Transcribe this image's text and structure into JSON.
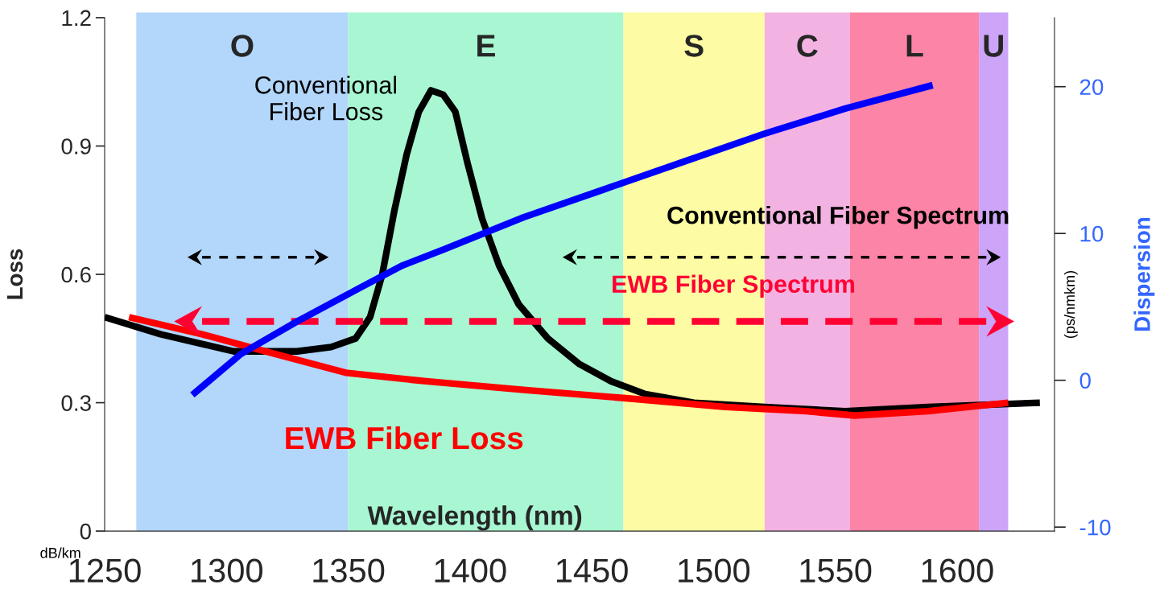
{
  "chart_data": {
    "type": "line",
    "xlabel": "Wavelength (nm)",
    "ylabel": "Loss",
    "y2label": "Dispersion",
    "xlim": [
      1250,
      1640
    ],
    "xticks": [
      1250,
      1300,
      1350,
      1400,
      1450,
      1500,
      1550,
      1600
    ],
    "ylim": [
      0,
      1.2
    ],
    "yticks": [
      {
        "value": 0,
        "label": "0"
      },
      0.3,
      0.6,
      0.9,
      1.2
    ],
    "y2lim": [
      -10.27,
      24.7
    ],
    "y2ticks": [
      -10,
      0,
      10,
      20
    ],
    "grid": false,
    "series": [
      {
        "color": "#000000",
        "marker": "none",
        "line_style": "solid",
        "x": [
          1250,
          1273,
          1303,
          1329,
          1343,
          1353,
          1359,
          1364,
          1369,
          1374,
          1379,
          1384,
          1389,
          1394,
          1399,
          1405,
          1412,
          1420,
          1432,
          1445,
          1458,
          1472,
          1492,
          1521,
          1554,
          1588,
          1634
        ],
        "values": [
          0.5,
          0.46,
          0.42,
          0.42,
          0.43,
          0.45,
          0.5,
          0.6,
          0.75,
          0.88,
          0.98,
          1.03,
          1.02,
          0.98,
          0.86,
          0.73,
          0.62,
          0.53,
          0.45,
          0.39,
          0.35,
          0.32,
          0.3,
          0.29,
          0.28,
          0.29,
          0.3
        ]
      },
      {
        "color": "#ff0000",
        "marker": "none",
        "line_style": "solid",
        "x": [
          1260,
          1290,
          1316,
          1349,
          1382,
          1422,
          1465,
          1505,
          1538,
          1558,
          1588,
          1621
        ],
        "values": [
          0.5,
          0.46,
          0.42,
          0.37,
          0.35,
          0.33,
          0.31,
          0.29,
          0.28,
          0.27,
          0.28,
          0.3
        ]
      },
      {
        "color": "#0000ff",
        "axis": "y2",
        "marker": "none",
        "line_style": "solid",
        "x": [
          1286,
          1306,
          1329,
          1356,
          1372,
          1389,
          1422,
          1455,
          1488,
          1521,
          1554,
          1590
        ],
        "values": [
          -1.0,
          1.8,
          4.0,
          6.4,
          7.8,
          8.9,
          11.1,
          13.0,
          14.9,
          16.8,
          18.5,
          20.1
        ]
      },
      {
        "color": "#000000",
        "marker": "none",
        "line_style": "dashed",
        "x": [
          1290,
          1336
        ],
        "values": [
          0.64,
          0.64
        ]
      },
      {
        "color": "#000000",
        "marker": "none",
        "line_style": "dashed",
        "x": [
          1444,
          1612
        ],
        "values": [
          0.64,
          0.64
        ]
      },
      {
        "color": "#ff0033",
        "marker": "none",
        "line_style": "dashed",
        "x": [
          1290,
          1612
        ],
        "values": [
          0.49,
          0.49
        ]
      }
    ],
    "bands": [
      {
        "axis": "x",
        "from": 1263,
        "to": 1350,
        "label": "O",
        "color": "#b3d6fb"
      },
      {
        "axis": "x",
        "from": 1350,
        "to": 1463,
        "label": "E",
        "color": "#a8f7d2"
      },
      {
        "axis": "x",
        "from": 1463,
        "to": 1521,
        "label": "S",
        "color": "#fdfba3"
      },
      {
        "axis": "x",
        "from": 1521,
        "to": 1556,
        "label": "C",
        "color": "#f3b3e2"
      },
      {
        "axis": "x",
        "from": 1556,
        "to": 1609,
        "label": "L",
        "color": "#fc84a6"
      },
      {
        "axis": "x",
        "from": 1609,
        "to": 1621,
        "label": "U",
        "color": "#cca4f8"
      }
    ],
    "annotations": [
      "Conventional\nFiber Loss",
      "EWB Fiber Loss",
      "Conventional Fiber Spectrum",
      "EWB Fiber Spectrum",
      "dB/km",
      "(ps/nmkm)"
    ]
  }
}
